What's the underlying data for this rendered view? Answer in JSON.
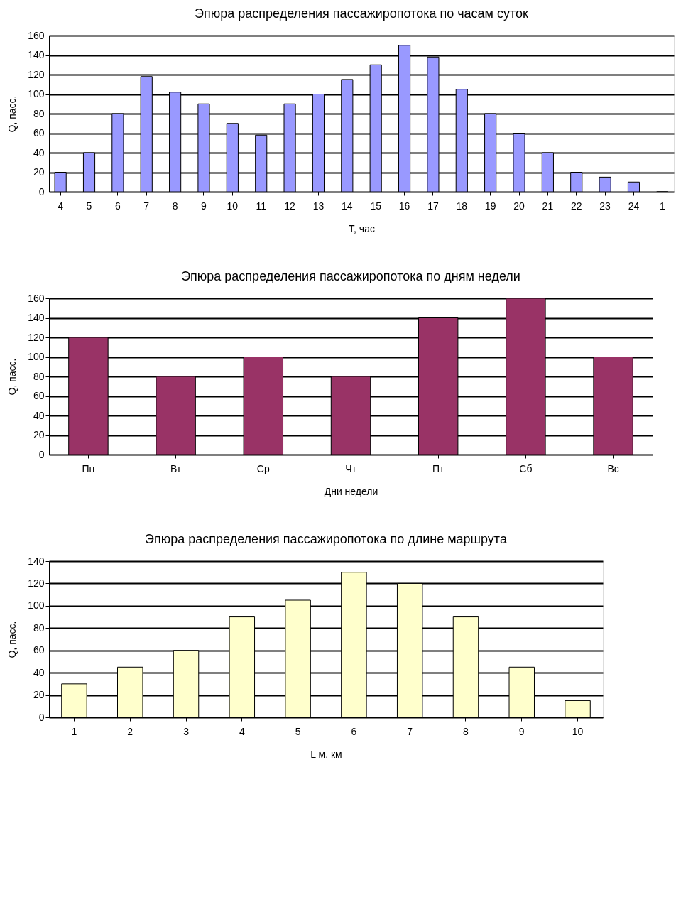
{
  "chart_data": [
    {
      "type": "bar",
      "title": "Эпюра распределения пассажиропотока по часам суток",
      "xlabel": "Т, час",
      "ylabel": "Q, пасс.",
      "categories": [
        "4",
        "5",
        "6",
        "7",
        "8",
        "9",
        "10",
        "11",
        "12",
        "13",
        "14",
        "15",
        "16",
        "17",
        "18",
        "19",
        "20",
        "21",
        "22",
        "23",
        "24",
        "1"
      ],
      "values": [
        20,
        40,
        80,
        118,
        102,
        90,
        70,
        58,
        90,
        100,
        115,
        130,
        150,
        138,
        105,
        80,
        60,
        40,
        20,
        15,
        10,
        0
      ],
      "color": "#9999ff",
      "ylim": [
        0,
        160
      ],
      "yticks": [
        0,
        20,
        40,
        60,
        80,
        100,
        120,
        140,
        160
      ],
      "grid": "y"
    },
    {
      "type": "bar",
      "title": "Эпюра распределения пассажиропотока по дням недели",
      "xlabel": "Дни недели",
      "ylabel": "Q, пасс.",
      "categories": [
        "Пн",
        "Вт",
        "Ср",
        "Чт",
        "Пт",
        "Сб",
        "Вс"
      ],
      "values": [
        120,
        80,
        100,
        80,
        140,
        160,
        100
      ],
      "color": "#993366",
      "ylim": [
        0,
        160
      ],
      "yticks": [
        0,
        20,
        40,
        60,
        80,
        100,
        120,
        140,
        160
      ],
      "grid": "y"
    },
    {
      "type": "bar",
      "title": "Эпюра распределения пассажиропотока по длине маршрута",
      "xlabel": "L м, км",
      "ylabel": "Q, пасс.",
      "categories": [
        "1",
        "2",
        "3",
        "4",
        "5",
        "6",
        "7",
        "8",
        "9",
        "10"
      ],
      "values": [
        30,
        45,
        60,
        90,
        105,
        130,
        120,
        90,
        45,
        15
      ],
      "color": "#ffffcc",
      "ylim": [
        0,
        140
      ],
      "yticks": [
        0,
        20,
        40,
        60,
        80,
        100,
        120,
        140
      ],
      "grid": "y"
    }
  ]
}
